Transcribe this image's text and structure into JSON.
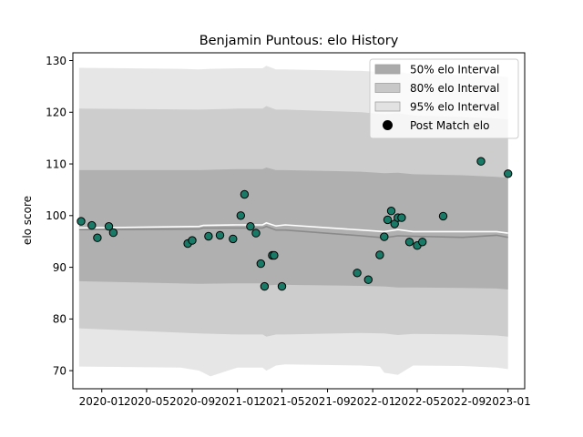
{
  "chart_data": {
    "type": "line",
    "title": "Benjamin Puntous: elo History",
    "xlabel": "",
    "ylabel": "elo score",
    "x_ticks": [
      "2020-01",
      "2020-05",
      "2020-09",
      "2021-01",
      "2021-05",
      "2021-09",
      "2022-01",
      "2022-05",
      "2022-09",
      "2023-01"
    ],
    "y_ticks": [
      70,
      80,
      90,
      100,
      110,
      120,
      130
    ],
    "xlim": [
      "2019-10-15",
      "2023-02-15"
    ],
    "ylim": [
      66.5,
      131.5
    ],
    "grid": false,
    "legend_position": "top-right",
    "legend": [
      {
        "label": "50% elo Interval",
        "kind": "band",
        "color": "#aaaaaa"
      },
      {
        "label": "80% elo Interval",
        "kind": "band",
        "color": "#c8c8c8"
      },
      {
        "label": "95% elo Interval",
        "kind": "band",
        "color": "#e2e2e2"
      },
      {
        "label": "Post Match elo",
        "kind": "marker",
        "color": "#000000"
      }
    ],
    "point_color": "#1a7a68",
    "mean_line_color": "#ffffff",
    "median_line_color": "#8a8a8a",
    "x": [
      "2019-11-06",
      "2019-12-05",
      "2019-12-20",
      "2020-01-20",
      "2020-02-01",
      "2020-08-20",
      "2020-09-01",
      "2020-10-15",
      "2020-11-15",
      "2020-12-20",
      "2021-01-10",
      "2021-01-20",
      "2021-02-05",
      "2021-02-20",
      "2021-03-05",
      "2021-03-15",
      "2021-04-05",
      "2021-04-10",
      "2021-05-01",
      "2021-11-20",
      "2021-12-20",
      "2022-01-20",
      "2022-02-01",
      "2022-02-10",
      "2022-02-20",
      "2022-03-01",
      "2022-03-10",
      "2022-03-20",
      "2022-04-10",
      "2022-05-01",
      "2022-05-15",
      "2022-07-10",
      "2022-10-20",
      "2023-01-01"
    ],
    "series": [
      {
        "name": "Post Match elo",
        "kind": "points",
        "values": [
          98.9,
          98.1,
          95.7,
          97.9,
          96.7,
          94.6,
          95.2,
          96.0,
          96.2,
          95.5,
          100.0,
          104.1,
          97.9,
          96.6,
          90.7,
          86.3,
          92.3,
          92.3,
          86.3,
          88.9,
          87.6,
          92.4,
          95.9,
          99.2,
          100.9,
          98.4,
          99.6,
          99.6,
          94.9,
          94.2,
          94.9,
          99.9,
          110.5,
          108.1
        ]
      },
      {
        "name": "50% elo Interval",
        "kind": "band",
        "x": [
          "2019-11-01",
          "2020-09-20",
          "2021-01-01",
          "2021-03-10",
          "2021-03-20",
          "2021-04-15",
          "2021-05-10",
          "2021-12-01",
          "2022-02-01",
          "2022-03-10",
          "2022-04-20",
          "2022-09-01",
          "2022-12-01",
          "2023-01-01"
        ],
        "upper": [
          108.8,
          108.8,
          109.0,
          109.0,
          109.3,
          108.8,
          108.8,
          108.5,
          108.2,
          108.3,
          108.0,
          107.8,
          107.5,
          107.3
        ],
        "lower": [
          87.3,
          86.8,
          86.9,
          86.9,
          86.5,
          86.6,
          86.6,
          86.4,
          86.3,
          86.1,
          86.1,
          86.0,
          85.9,
          85.7
        ]
      },
      {
        "name": "80% elo Interval",
        "kind": "band",
        "x": [
          "2019-11-01",
          "2020-09-20",
          "2021-01-01",
          "2021-03-10",
          "2021-03-20",
          "2021-04-15",
          "2021-05-10",
          "2021-12-01",
          "2022-02-01",
          "2022-03-10",
          "2022-04-20",
          "2022-09-01",
          "2022-12-01",
          "2023-01-01"
        ],
        "upper": [
          120.7,
          120.5,
          120.7,
          120.7,
          121.2,
          120.5,
          120.5,
          120.0,
          119.6,
          119.8,
          119.4,
          119.1,
          118.8,
          118.6
        ],
        "lower": [
          78.2,
          77.2,
          77.0,
          77.0,
          76.6,
          77.0,
          77.0,
          77.3,
          77.2,
          76.9,
          77.1,
          77.0,
          76.8,
          76.6
        ]
      },
      {
        "name": "95% elo Interval",
        "kind": "band",
        "x": [
          "2019-11-01",
          "2020-08-01",
          "2020-09-20",
          "2020-10-20",
          "2021-01-01",
          "2021-03-10",
          "2021-03-20",
          "2021-04-15",
          "2021-05-10",
          "2021-12-01",
          "2022-01-20",
          "2022-02-01",
          "2022-03-10",
          "2022-04-20",
          "2022-09-01",
          "2022-12-01",
          "2023-01-01"
        ],
        "upper": [
          128.6,
          128.4,
          128.3,
          128.4,
          128.5,
          128.5,
          129.0,
          128.3,
          128.3,
          128.0,
          127.8,
          127.6,
          127.8,
          127.4,
          127.2,
          127.0,
          126.8
        ],
        "lower": [
          70.8,
          70.6,
          70.0,
          68.9,
          70.6,
          70.6,
          70.0,
          71.0,
          71.2,
          71.0,
          70.8,
          69.6,
          69.2,
          71.0,
          70.9,
          70.6,
          70.3
        ]
      },
      {
        "name": "mean",
        "kind": "line",
        "x": [
          "2019-11-01",
          "2020-09-20",
          "2020-10-01",
          "2021-01-01",
          "2021-03-10",
          "2021-03-20",
          "2021-04-15",
          "2021-05-10",
          "2021-12-01",
          "2022-02-01",
          "2022-03-10",
          "2022-04-20",
          "2022-09-01",
          "2022-12-01",
          "2023-01-01"
        ],
        "values": [
          97.6,
          97.9,
          98.1,
          98.2,
          98.2,
          98.6,
          98.0,
          98.2,
          97.2,
          96.9,
          97.3,
          96.9,
          96.9,
          96.9,
          96.6
        ]
      },
      {
        "name": "median",
        "kind": "line",
        "x": [
          "2019-11-01",
          "2020-09-20",
          "2020-10-01",
          "2021-01-01",
          "2021-03-10",
          "2021-03-20",
          "2021-04-15",
          "2021-05-10",
          "2021-12-01",
          "2022-02-01",
          "2022-03-10",
          "2022-04-20",
          "2022-09-01",
          "2022-12-01",
          "2023-01-01"
        ],
        "values": [
          97.3,
          97.4,
          97.6,
          97.6,
          97.6,
          97.9,
          97.2,
          97.2,
          96.1,
          95.7,
          96.1,
          96.0,
          95.8,
          96.2,
          95.8
        ]
      }
    ]
  }
}
